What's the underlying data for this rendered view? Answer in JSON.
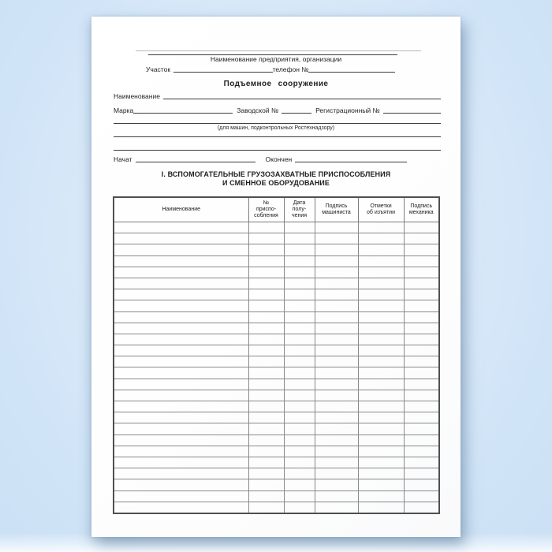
{
  "page": {
    "org_caption": "Наименование предприятия, организации",
    "uchastok_label": "Участок",
    "phone_label": "телефон №",
    "doc_type": "Подъемное  сооружение",
    "name_label": "Наименование",
    "marka_label": "Марка",
    "factory_no_label": "Заводской №",
    "reg_no_label": "Регистрационный №",
    "rostech_caption": "(для машин, подконтрольных Ростехнадзору)",
    "started_label": "Начат",
    "finished_label": "Окончен",
    "section_title_line1": "I. ВСПОМОГАТЕЛЬНЫЕ ГРУЗОЗАХВАТНЫЕ ПРИСПОСОБЛЕНИЯ",
    "section_title_line2": "И СМЕННОЕ ОБОРУДОВАНИЕ"
  },
  "table": {
    "columns": [
      "Наименование",
      "№\nприспо-\nсобления",
      "Дата\nполу-\nчения",
      "Подпись\nмашиниста",
      "Отметки\nоб изъятии",
      "Подпись\nмеханика"
    ],
    "row_count": 26,
    "rows_empty": true
  },
  "colors": {
    "background_blue": "#d3e7fb",
    "paper_white": "#ffffff",
    "ink": "#1f1f1f",
    "rule_line": "#3c3c3c",
    "table_border": "#7d7d7d"
  }
}
